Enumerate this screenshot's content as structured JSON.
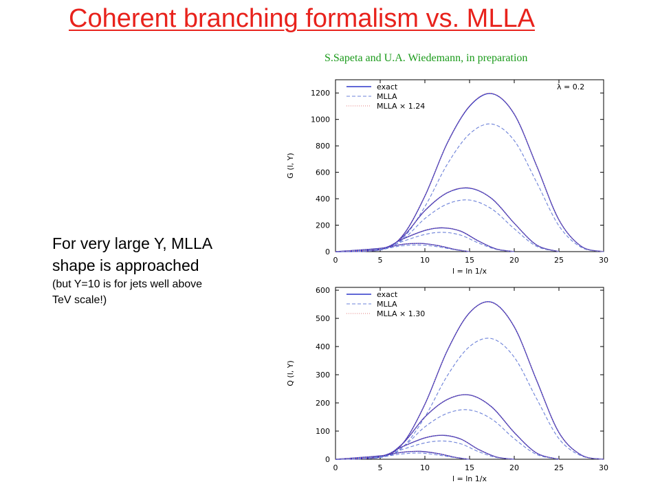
{
  "slide": {
    "title": "Coherent branching formalism vs. MLLA",
    "credit": "S.Sapeta and U.A. Wiedemann, in preparation",
    "text_line1": "For very large Y, MLLA",
    "text_line2": "shape is approached",
    "text_line3": "(but Y=10 is for jets well above",
    "text_line4": "TeV scale!)"
  },
  "colors": {
    "title": "#e8221c",
    "credit": "#1a9a1a",
    "exact": "#2b35c8",
    "mlla": "#6b80d8",
    "mlla_scaled": "#e07878"
  },
  "chart_data": [
    {
      "type": "line",
      "xlabel": "l = ln 1/x",
      "ylabel": "G (l, Y)",
      "xlim": [
        0,
        30
      ],
      "ylim": [
        0,
        1300
      ],
      "x_ticks": [
        0,
        5,
        10,
        15,
        20,
        25,
        30
      ],
      "y_ticks": [
        0,
        200,
        400,
        600,
        800,
        1000,
        1200
      ],
      "annotation": "λ = 0.2",
      "legend_position": "top-left",
      "series": [
        {
          "name": "exact",
          "style": "solid"
        },
        {
          "name": "MLLA",
          "style": "dashed"
        },
        {
          "name": "MLLA × 1.24",
          "style": "dotted"
        }
      ],
      "curves": [
        {
          "series": "exact",
          "points": [
            [
              0,
              0
            ],
            [
              5,
              15
            ],
            [
              7.5,
              120
            ],
            [
              10,
              420
            ],
            [
              12.5,
              820
            ],
            [
              15,
              1100
            ],
            [
              17.5,
              1195
            ],
            [
              20,
              1040
            ],
            [
              22.5,
              650
            ],
            [
              25,
              240
            ],
            [
              27.5,
              40
            ],
            [
              30,
              0
            ]
          ]
        },
        {
          "series": "MLLA",
          "points": [
            [
              0,
              0
            ],
            [
              5,
              12
            ],
            [
              7.5,
              98
            ],
            [
              10,
              340
            ],
            [
              12.5,
              660
            ],
            [
              15,
              890
            ],
            [
              17.5,
              965
            ],
            [
              20,
              840
            ],
            [
              22.5,
              525
            ],
            [
              25,
              195
            ],
            [
              27.5,
              32
            ],
            [
              30,
              0
            ]
          ]
        },
        {
          "series": "MLLA × 1.24",
          "points": [
            [
              0,
              0
            ],
            [
              5,
              15
            ],
            [
              7.5,
              122
            ],
            [
              10,
              422
            ],
            [
              12.5,
              818
            ],
            [
              15,
              1104
            ],
            [
              17.5,
              1197
            ],
            [
              20,
              1042
            ],
            [
              22.5,
              651
            ],
            [
              25,
              242
            ],
            [
              27.5,
              40
            ],
            [
              30,
              0
            ]
          ]
        },
        {
          "series": "exact",
          "points": [
            [
              0,
              0
            ],
            [
              5,
              15
            ],
            [
              7.5,
              110
            ],
            [
              10,
              310
            ],
            [
              12.5,
              445
            ],
            [
              15,
              480
            ],
            [
              17.5,
              400
            ],
            [
              20,
              215
            ],
            [
              22.5,
              50
            ],
            [
              25,
              0
            ]
          ]
        },
        {
          "series": "MLLA",
          "points": [
            [
              0,
              0
            ],
            [
              5,
              12
            ],
            [
              7.5,
              90
            ],
            [
              10,
              250
            ],
            [
              12.5,
              360
            ],
            [
              15,
              390
            ],
            [
              17.5,
              322
            ],
            [
              20,
              173
            ],
            [
              22.5,
              40
            ],
            [
              25,
              0
            ]
          ]
        },
        {
          "series": "MLLA × 1.24",
          "points": [
            [
              0,
              0
            ],
            [
              5,
              15
            ],
            [
              7.5,
              112
            ],
            [
              10,
              310
            ],
            [
              12.5,
              446
            ],
            [
              15,
              483
            ],
            [
              17.5,
              399
            ],
            [
              20,
              215
            ],
            [
              22.5,
              50
            ],
            [
              25,
              0
            ]
          ]
        },
        {
          "series": "exact",
          "points": [
            [
              0,
              0
            ],
            [
              5,
              20
            ],
            [
              7.5,
              95
            ],
            [
              10,
              160
            ],
            [
              12,
              180
            ],
            [
              14,
              155
            ],
            [
              16,
              80
            ],
            [
              18,
              20
            ],
            [
              20,
              0
            ]
          ]
        },
        {
          "series": "MLLA",
          "points": [
            [
              0,
              0
            ],
            [
              5,
              16
            ],
            [
              7.5,
              77
            ],
            [
              10,
              130
            ],
            [
              12,
              146
            ],
            [
              14,
              125
            ],
            [
              16,
              65
            ],
            [
              18,
              16
            ],
            [
              20,
              0
            ]
          ]
        },
        {
          "series": "MLLA × 1.24",
          "points": [
            [
              0,
              0
            ],
            [
              5,
              20
            ],
            [
              7.5,
              95
            ],
            [
              10,
              161
            ],
            [
              12,
              181
            ],
            [
              14,
              155
            ],
            [
              16,
              80
            ],
            [
              18,
              20
            ],
            [
              20,
              0
            ]
          ]
        },
        {
          "series": "exact",
          "points": [
            [
              0,
              0
            ],
            [
              5,
              25
            ],
            [
              7.5,
              55
            ],
            [
              9.5,
              62
            ],
            [
              11.5,
              45
            ],
            [
              13.5,
              15
            ],
            [
              15,
              0
            ]
          ]
        },
        {
          "series": "MLLA",
          "points": [
            [
              0,
              0
            ],
            [
              5,
              20
            ],
            [
              7.5,
              44
            ],
            [
              9.5,
              50
            ],
            [
              11.5,
              36
            ],
            [
              13.5,
              12
            ],
            [
              15,
              0
            ]
          ]
        },
        {
          "series": "MLLA × 1.24",
          "points": [
            [
              0,
              0
            ],
            [
              5,
              25
            ],
            [
              7.5,
              55
            ],
            [
              9.5,
              62
            ],
            [
              11.5,
              45
            ],
            [
              13.5,
              15
            ],
            [
              15,
              0
            ]
          ]
        }
      ]
    },
    {
      "type": "line",
      "xlabel": "l = ln 1/x",
      "ylabel": "Q (l, Y)",
      "xlim": [
        0,
        30
      ],
      "ylim": [
        0,
        610
      ],
      "x_ticks": [
        0,
        5,
        10,
        15,
        20,
        25,
        30
      ],
      "y_ticks": [
        0,
        100,
        200,
        300,
        400,
        500,
        600
      ],
      "legend_position": "top-left",
      "series": [
        {
          "name": "exact",
          "style": "solid"
        },
        {
          "name": "MLLA",
          "style": "dashed"
        },
        {
          "name": "MLLA × 1.30",
          "style": "dotted"
        }
      ],
      "curves": [
        {
          "series": "exact",
          "points": [
            [
              0,
              0
            ],
            [
              5,
              8
            ],
            [
              7.5,
              55
            ],
            [
              10,
              195
            ],
            [
              12.5,
              385
            ],
            [
              15,
              520
            ],
            [
              17.5,
              557
            ],
            [
              20,
              470
            ],
            [
              22.5,
              280
            ],
            [
              25,
              95
            ],
            [
              27.5,
              15
            ],
            [
              30,
              0
            ]
          ]
        },
        {
          "series": "MLLA",
          "points": [
            [
              0,
              0
            ],
            [
              5,
              6
            ],
            [
              7.5,
              42
            ],
            [
              10,
              150
            ],
            [
              12.5,
              296
            ],
            [
              15,
              400
            ],
            [
              17.5,
              428
            ],
            [
              20,
              362
            ],
            [
              22.5,
              215
            ],
            [
              25,
              73
            ],
            [
              27.5,
              12
            ],
            [
              30,
              0
            ]
          ]
        },
        {
          "series": "MLLA × 1.30",
          "points": [
            [
              0,
              0
            ],
            [
              5,
              8
            ],
            [
              7.5,
              55
            ],
            [
              10,
              195
            ],
            [
              12.5,
              385
            ],
            [
              15,
              520
            ],
            [
              17.5,
              556
            ],
            [
              20,
              470
            ],
            [
              22.5,
              280
            ],
            [
              25,
              95
            ],
            [
              27.5,
              15
            ],
            [
              30,
              0
            ]
          ]
        },
        {
          "series": "exact",
          "points": [
            [
              0,
              0
            ],
            [
              5,
              8
            ],
            [
              7.5,
              55
            ],
            [
              10,
              150
            ],
            [
              12.5,
              212
            ],
            [
              15,
              228
            ],
            [
              17.5,
              185
            ],
            [
              20,
              95
            ],
            [
              22.5,
              22
            ],
            [
              25,
              0
            ]
          ]
        },
        {
          "series": "MLLA",
          "points": [
            [
              0,
              0
            ],
            [
              5,
              6
            ],
            [
              7.5,
              42
            ],
            [
              10,
              115
            ],
            [
              12.5,
              163
            ],
            [
              15,
              175
            ],
            [
              17.5,
              142
            ],
            [
              20,
              73
            ],
            [
              22.5,
              17
            ],
            [
              25,
              0
            ]
          ]
        },
        {
          "series": "MLLA × 1.30",
          "points": [
            [
              0,
              0
            ],
            [
              5,
              8
            ],
            [
              7.5,
              55
            ],
            [
              10,
              150
            ],
            [
              12.5,
              212
            ],
            [
              15,
              228
            ],
            [
              17.5,
              185
            ],
            [
              20,
              95
            ],
            [
              22.5,
              22
            ],
            [
              25,
              0
            ]
          ]
        },
        {
          "series": "exact",
          "points": [
            [
              0,
              0
            ],
            [
              5,
              10
            ],
            [
              7.5,
              45
            ],
            [
              10,
              76
            ],
            [
              12,
              85
            ],
            [
              14,
              72
            ],
            [
              16,
              35
            ],
            [
              18,
              8
            ],
            [
              20,
              0
            ]
          ]
        },
        {
          "series": "MLLA",
          "points": [
            [
              0,
              0
            ],
            [
              5,
              8
            ],
            [
              7.5,
              35
            ],
            [
              10,
              58
            ],
            [
              12,
              65
            ],
            [
              14,
              55
            ],
            [
              16,
              27
            ],
            [
              18,
              6
            ],
            [
              20,
              0
            ]
          ]
        },
        {
          "series": "MLLA × 1.30",
          "points": [
            [
              0,
              0
            ],
            [
              5,
              10
            ],
            [
              7.5,
              45
            ],
            [
              10,
              76
            ],
            [
              12,
              85
            ],
            [
              14,
              72
            ],
            [
              16,
              35
            ],
            [
              18,
              8
            ],
            [
              20,
              0
            ]
          ]
        },
        {
          "series": "exact",
          "points": [
            [
              0,
              0
            ],
            [
              5,
              12
            ],
            [
              7.5,
              25
            ],
            [
              9.5,
              28
            ],
            [
              11.5,
              20
            ],
            [
              13.5,
              6
            ],
            [
              15,
              0
            ]
          ]
        },
        {
          "series": "MLLA",
          "points": [
            [
              0,
              0
            ],
            [
              5,
              9
            ],
            [
              7.5,
              19
            ],
            [
              9.5,
              22
            ],
            [
              11.5,
              15
            ],
            [
              13.5,
              5
            ],
            [
              15,
              0
            ]
          ]
        },
        {
          "series": "MLLA × 1.30",
          "points": [
            [
              0,
              0
            ],
            [
              5,
              12
            ],
            [
              7.5,
              25
            ],
            [
              9.5,
              28
            ],
            [
              11.5,
              20
            ],
            [
              13.5,
              6
            ],
            [
              15,
              0
            ]
          ]
        }
      ]
    }
  ]
}
